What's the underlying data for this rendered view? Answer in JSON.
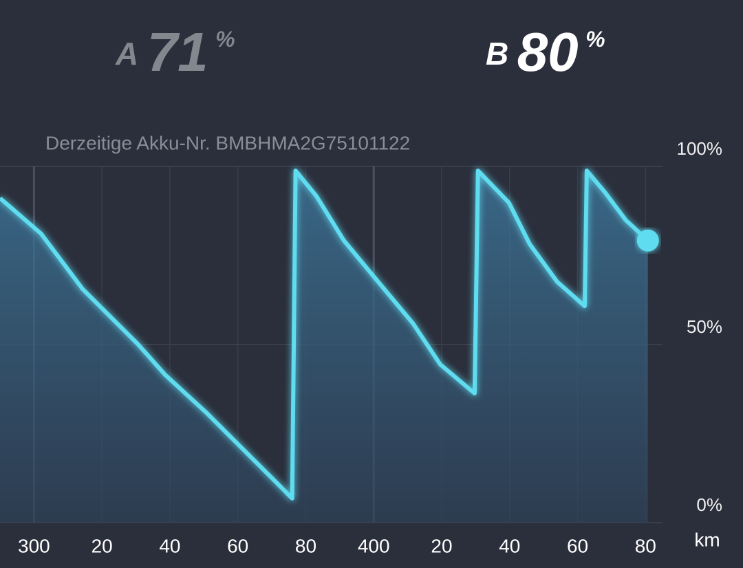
{
  "chart_data": {
    "type": "line",
    "battery_a": {
      "label": "A",
      "value": 71,
      "unit": "%"
    },
    "battery_b": {
      "label": "B",
      "value": 80,
      "unit": "%"
    },
    "subtitle": "Derzeitige Akku-Nr. BMBHMA2G75101122",
    "xlabel": "km",
    "x": [
      290,
      302.1,
      314.3,
      330.5,
      338.6,
      350.7,
      362.9,
      371.0,
      376.0,
      377.0,
      383.1,
      391.2,
      401.3,
      411.5,
      419.6,
      429.7,
      430.7,
      439.8,
      445.9,
      454.0,
      462.1,
      462.7,
      468.1,
      474.2,
      480.7
    ],
    "series": [
      {
        "color": "#5fdcef",
        "values": [
          91.1,
          81.1,
          65.6,
          50.2,
          41.5,
          30.9,
          19.3,
          11.6,
          6.8,
          98.8,
          91.7,
          79.2,
          67.6,
          56.0,
          44.4,
          36.3,
          98.8,
          89.8,
          78.2,
          67.6,
          60.8,
          98.8,
          92.7,
          84.9,
          79.2
        ]
      }
    ],
    "xlim": [
      290,
      485
    ],
    "ylim": [
      0,
      100
    ],
    "xticks": [
      300,
      {
        "value": 320,
        "label": "20"
      },
      {
        "value": 340,
        "label": "40"
      },
      {
        "value": 360,
        "label": "60"
      },
      {
        "value": 380,
        "label": "80"
      },
      400,
      {
        "value": 420,
        "label": "20"
      },
      {
        "value": 440,
        "label": "40"
      },
      {
        "value": 460,
        "label": "60"
      },
      {
        "value": 480,
        "label": "80"
      }
    ],
    "yticks": [
      {
        "value": 0,
        "label": "0%"
      },
      {
        "value": 50,
        "label": "50%"
      },
      {
        "value": 100,
        "label": "100%"
      }
    ],
    "grid": true
  }
}
